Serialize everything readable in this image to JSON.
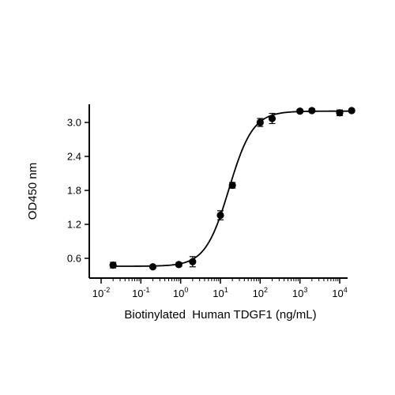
{
  "chart_data": {
    "type": "scatter",
    "xlabel": "Biotinylated  Human TDGF1 (ng/mL)",
    "ylabel": "OD450 nm",
    "xscale": "log",
    "xlim": [
      0.01,
      50000
    ],
    "ylim": [
      0.3,
      3.3
    ],
    "xticks": [
      {
        "value": 0.01,
        "base": "10",
        "exp": "-2"
      },
      {
        "value": 0.1,
        "base": "10",
        "exp": "-1"
      },
      {
        "value": 1,
        "base": "10",
        "exp": "0"
      },
      {
        "value": 10,
        "base": "10",
        "exp": "1"
      },
      {
        "value": 100,
        "base": "10",
        "exp": "2"
      },
      {
        "value": 1000,
        "base": "10",
        "exp": "3"
      },
      {
        "value": 10000,
        "base": "10",
        "exp": "4"
      }
    ],
    "yticks": [
      {
        "value": 0.6,
        "label": "0.6"
      },
      {
        "value": 1.2,
        "label": "1.2"
      },
      {
        "value": 1.8,
        "label": "1.8"
      },
      {
        "value": 2.4,
        "label": "2.4"
      },
      {
        "value": 3.0,
        "label": "3.0"
      }
    ],
    "points": [
      {
        "x": 0.02,
        "y": 0.48,
        "err": 0.05
      },
      {
        "x": 0.2,
        "y": 0.45,
        "err": 0.02
      },
      {
        "x": 0.9,
        "y": 0.49,
        "err": 0.03
      },
      {
        "x": 2.0,
        "y": 0.54,
        "err": 0.09
      },
      {
        "x": 10,
        "y": 1.36,
        "err": 0.08
      },
      {
        "x": 20,
        "y": 1.89,
        "err": 0.05
      },
      {
        "x": 100,
        "y": 3.0,
        "err": 0.07
      },
      {
        "x": 200,
        "y": 3.07,
        "err": 0.09
      },
      {
        "x": 1000,
        "y": 3.2,
        "err": 0.03
      },
      {
        "x": 2000,
        "y": 3.21,
        "err": 0.03
      },
      {
        "x": 10000,
        "y": 3.17,
        "err": 0.05
      },
      {
        "x": 20000,
        "y": 3.21,
        "err": 0.02
      }
    ],
    "fit": {
      "bottom": 0.46,
      "top": 3.2,
      "ec50": 16.5,
      "hill": 1.45
    },
    "grid": false,
    "legend": "none"
  }
}
